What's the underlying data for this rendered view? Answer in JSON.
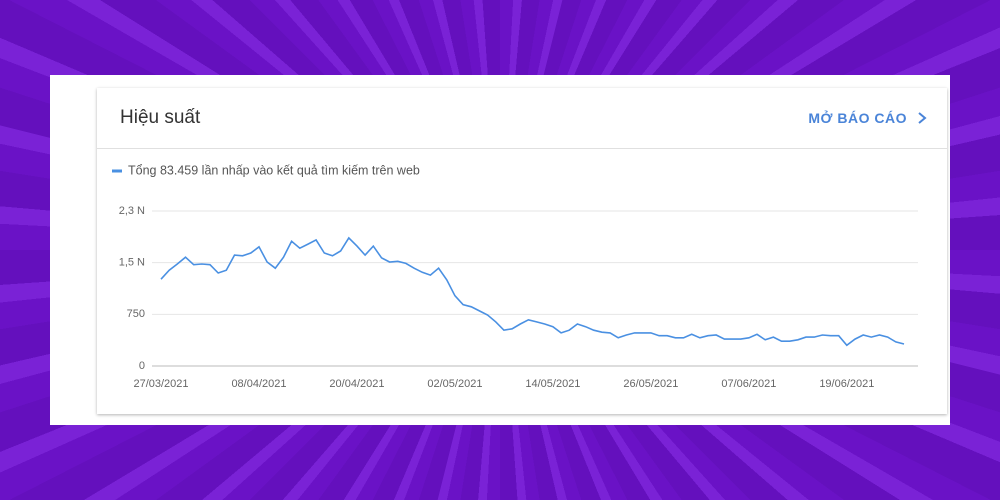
{
  "card": {
    "title": "Hiệu suất",
    "link": "MỞ BÁO CÁO"
  },
  "chart_data": {
    "type": "line",
    "categories": [
      "27/03/2021",
      null,
      null,
      null,
      null,
      null,
      null,
      null,
      null,
      null,
      null,
      null,
      "08/04/2021",
      null,
      null,
      null,
      null,
      null,
      null,
      null,
      null,
      null,
      null,
      null,
      "20/04/2021",
      null,
      null,
      null,
      null,
      null,
      null,
      null,
      null,
      null,
      null,
      null,
      "02/05/2021",
      null,
      null,
      null,
      null,
      null,
      null,
      null,
      null,
      null,
      null,
      null,
      "14/05/2021",
      null,
      null,
      null,
      null,
      null,
      null,
      null,
      null,
      null,
      null,
      null,
      "26/05/2021",
      null,
      null,
      null,
      null,
      null,
      null,
      null,
      null,
      null,
      null,
      null,
      "07/06/2021",
      null,
      null,
      null,
      null,
      null,
      null,
      null,
      null,
      null,
      null,
      null,
      "19/06/2021",
      null,
      null,
      null,
      null,
      null,
      null,
      null
    ],
    "series": [
      {
        "name": "Tổng 83.459 lần nhấp vào kết quả tìm kiếm trên web",
        "color": "#4a90e2",
        "values": [
          1260,
          1390,
          1480,
          1580,
          1470,
          1480,
          1470,
          1350,
          1390,
          1610,
          1600,
          1640,
          1730,
          1510,
          1420,
          1580,
          1810,
          1710,
          1770,
          1830,
          1640,
          1600,
          1670,
          1860,
          1740,
          1610,
          1740,
          1570,
          1510,
          1520,
          1490,
          1420,
          1360,
          1320,
          1420,
          1250,
          1020,
          890,
          860,
          800,
          740,
          640,
          520,
          540,
          610,
          670,
          640,
          610,
          570,
          480,
          520,
          610,
          570,
          520,
          490,
          480,
          410,
          450,
          480,
          480,
          480,
          440,
          440,
          410,
          410,
          460,
          410,
          440,
          450,
          390,
          390,
          390,
          410,
          460,
          380,
          420,
          360,
          360,
          380,
          420,
          420,
          450,
          440,
          440,
          300,
          390,
          450,
          420,
          450,
          420,
          350,
          320
        ]
      }
    ],
    "ylim": [
      0,
      2250
    ],
    "yticks": [
      0,
      750,
      {
        "value": 1500,
        "label": "1,5 N"
      },
      {
        "value": 2250,
        "label": "2,3 N"
      }
    ],
    "grid": true
  }
}
